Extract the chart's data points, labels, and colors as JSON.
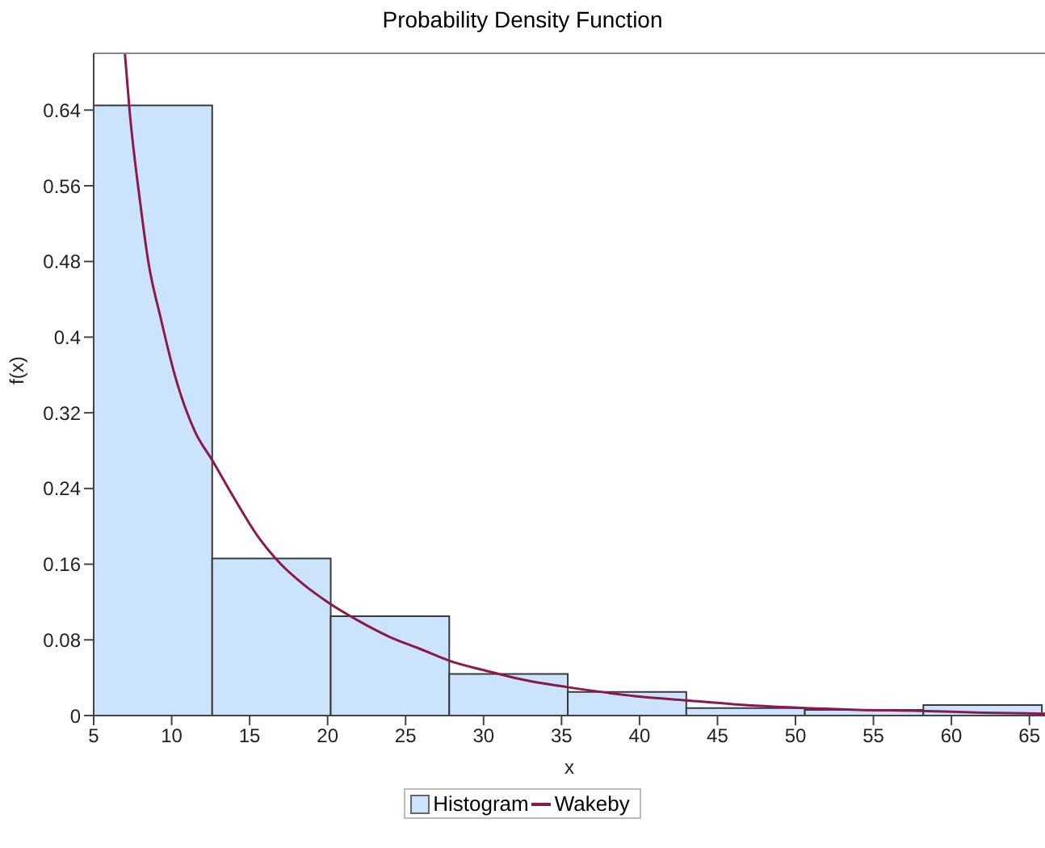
{
  "chart_data": {
    "type": "histogram",
    "title": "Probability Density Function",
    "xlabel": "x",
    "ylabel": "f(x)",
    "bins": [
      5,
      12.6,
      20.2,
      27.8,
      35.4,
      43,
      50.6,
      58.2,
      65.8
    ],
    "series": [
      {
        "name": "Histogram",
        "color": "#cce4fb",
        "values": [
          0.645,
          0.166,
          0.105,
          0.044,
          0.025,
          0.008,
          0.006,
          0.011
        ]
      },
      {
        "name": "Wakeby",
        "type": "line",
        "color": "#8b1a4a",
        "x": [
          7,
          7.3,
          8,
          8.5,
          9.3,
          10.2,
          11.5,
          12.6,
          14,
          15.5,
          17,
          18.5,
          20,
          22,
          24,
          26,
          27.8,
          30,
          32.5,
          35.4,
          38,
          40,
          43,
          46,
          50.6,
          54,
          58,
          62,
          66
        ],
        "values": [
          0.7,
          0.64,
          0.54,
          0.48,
          0.42,
          0.36,
          0.3,
          0.27,
          0.23,
          0.19,
          0.16,
          0.138,
          0.12,
          0.1,
          0.083,
          0.07,
          0.058,
          0.048,
          0.038,
          0.03,
          0.024,
          0.02,
          0.016,
          0.012,
          0.008,
          0.006,
          0.005,
          0.003,
          0.002
        ]
      }
    ],
    "xlim": [
      5,
      66
    ],
    "xticks": [
      5,
      10,
      15,
      20,
      25,
      30,
      35,
      40,
      45,
      50,
      55,
      60,
      65
    ],
    "ylim": [
      0,
      0.7
    ],
    "yticks": [
      0,
      0.08,
      0.16,
      0.24,
      0.32,
      0.4,
      0.48,
      0.56,
      0.64
    ],
    "grid": false,
    "legend": "bottom",
    "line_style": "solid",
    "marker": "none"
  }
}
